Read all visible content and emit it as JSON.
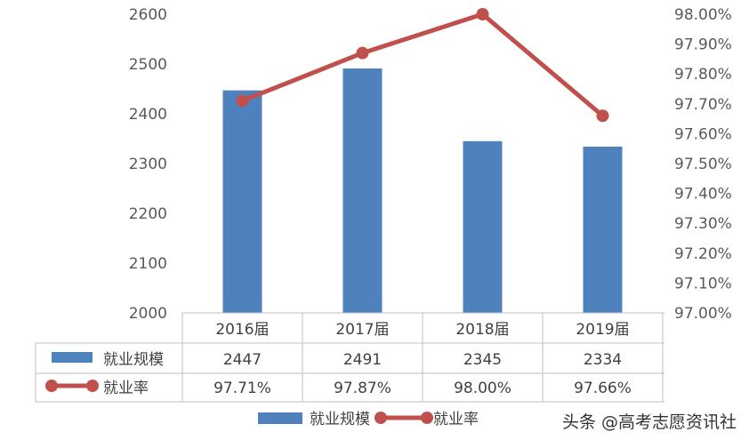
{
  "chart_data": {
    "type": "bar",
    "categories": [
      "2016届",
      "2017届",
      "2018届",
      "2019届"
    ],
    "series": [
      {
        "name": "就业规模",
        "type": "bar",
        "axis": "left",
        "color": "#4f81bd",
        "values": [
          2447,
          2491,
          2345,
          2334
        ],
        "display": [
          "2447",
          "2491",
          "2345",
          "2334"
        ]
      },
      {
        "name": "就业率",
        "type": "line",
        "axis": "right",
        "color": "#c0504d",
        "values": [
          97.71,
          97.87,
          98.0,
          97.66
        ],
        "display": [
          "97.71%",
          "97.87%",
          "98.00%",
          "97.66%"
        ]
      }
    ],
    "y_left": {
      "min": 2000,
      "max": 2600,
      "ticks": [
        "2000",
        "2100",
        "2200",
        "2300",
        "2400",
        "2500",
        "2600"
      ]
    },
    "y_right": {
      "min": 97.0,
      "max": 98.0,
      "ticks": [
        "97.00%",
        "97.10%",
        "97.20%",
        "97.30%",
        "97.40%",
        "97.50%",
        "97.60%",
        "97.70%",
        "97.80%",
        "97.90%",
        "98.00%"
      ]
    },
    "grid": false,
    "data_table": true,
    "legend_position": "bottom"
  },
  "watermark": "头条 @高考志愿资讯社"
}
